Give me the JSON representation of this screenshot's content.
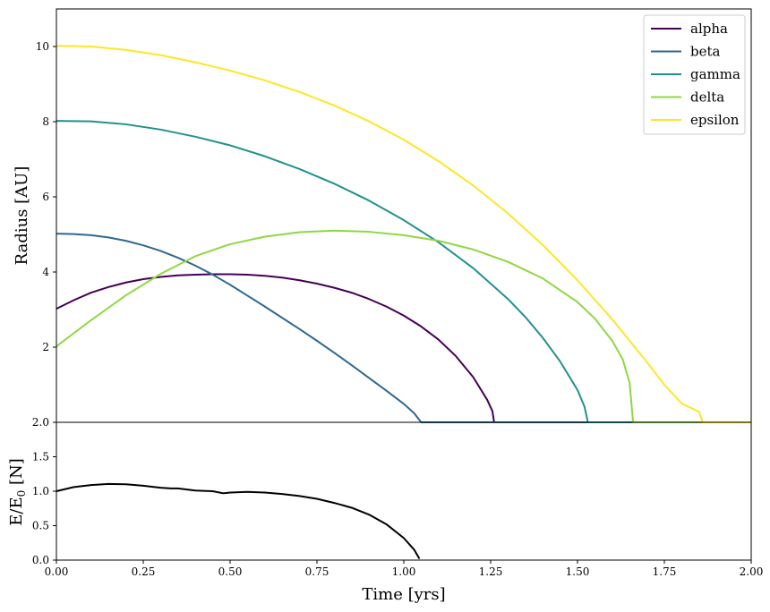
{
  "chart_data": [
    {
      "type": "line",
      "title": "",
      "xlabel": "",
      "ylabel": "Radius [AU]",
      "xlim": [
        0.0,
        2.0
      ],
      "ylim": [
        0.0,
        11.0
      ],
      "yticks": [
        2,
        4,
        6,
        8,
        10
      ],
      "ytick_labels": [
        "2",
        "4",
        "6",
        "8",
        "10"
      ],
      "grid": false,
      "legend": "top-right",
      "series": [
        {
          "name": "alpha",
          "color": "#440154",
          "points": [
            [
              0.0,
              3.02
            ],
            [
              0.05,
              3.25
            ],
            [
              0.1,
              3.45
            ],
            [
              0.15,
              3.6
            ],
            [
              0.2,
              3.72
            ],
            [
              0.25,
              3.81
            ],
            [
              0.3,
              3.87
            ],
            [
              0.35,
              3.91
            ],
            [
              0.4,
              3.93
            ],
            [
              0.45,
              3.94
            ],
            [
              0.5,
              3.94
            ],
            [
              0.55,
              3.93
            ],
            [
              0.6,
              3.9
            ],
            [
              0.65,
              3.85
            ],
            [
              0.7,
              3.78
            ],
            [
              0.75,
              3.69
            ],
            [
              0.8,
              3.58
            ],
            [
              0.85,
              3.45
            ],
            [
              0.9,
              3.28
            ],
            [
              0.95,
              3.08
            ],
            [
              1.0,
              2.84
            ],
            [
              1.05,
              2.55
            ],
            [
              1.1,
              2.2
            ],
            [
              1.15,
              1.76
            ],
            [
              1.2,
              1.2
            ],
            [
              1.24,
              0.6
            ],
            [
              1.255,
              0.3
            ],
            [
              1.26,
              0.0
            ],
            [
              2.0,
              0.0
            ]
          ]
        },
        {
          "name": "beta",
          "color": "#31688e",
          "points": [
            [
              0.0,
              5.02
            ],
            [
              0.05,
              5.01
            ],
            [
              0.1,
              4.98
            ],
            [
              0.15,
              4.92
            ],
            [
              0.2,
              4.83
            ],
            [
              0.25,
              4.71
            ],
            [
              0.3,
              4.56
            ],
            [
              0.35,
              4.38
            ],
            [
              0.4,
              4.17
            ],
            [
              0.45,
              3.93
            ],
            [
              0.5,
              3.66
            ],
            [
              0.55,
              3.37
            ],
            [
              0.6,
              3.08
            ],
            [
              0.65,
              2.78
            ],
            [
              0.7,
              2.48
            ],
            [
              0.75,
              2.17
            ],
            [
              0.8,
              1.85
            ],
            [
              0.85,
              1.52
            ],
            [
              0.9,
              1.18
            ],
            [
              0.95,
              0.84
            ],
            [
              1.0,
              0.49
            ],
            [
              1.03,
              0.24
            ],
            [
              1.05,
              0.0
            ],
            [
              2.0,
              0.0
            ]
          ]
        },
        {
          "name": "gamma",
          "color": "#21918c",
          "points": [
            [
              0.0,
              8.02
            ],
            [
              0.1,
              8.01
            ],
            [
              0.2,
              7.93
            ],
            [
              0.3,
              7.79
            ],
            [
              0.4,
              7.6
            ],
            [
              0.5,
              7.37
            ],
            [
              0.6,
              7.08
            ],
            [
              0.7,
              6.74
            ],
            [
              0.8,
              6.35
            ],
            [
              0.9,
              5.9
            ],
            [
              1.0,
              5.38
            ],
            [
              1.1,
              4.79
            ],
            [
              1.2,
              4.1
            ],
            [
              1.3,
              3.28
            ],
            [
              1.35,
              2.8
            ],
            [
              1.4,
              2.25
            ],
            [
              1.45,
              1.62
            ],
            [
              1.5,
              0.86
            ],
            [
              1.52,
              0.42
            ],
            [
              1.53,
              0.0
            ],
            [
              2.0,
              0.0
            ]
          ]
        },
        {
          "name": "delta",
          "color": "#90d743",
          "points": [
            [
              0.0,
              2.02
            ],
            [
              0.1,
              2.72
            ],
            [
              0.2,
              3.38
            ],
            [
              0.3,
              3.95
            ],
            [
              0.4,
              4.42
            ],
            [
              0.5,
              4.74
            ],
            [
              0.6,
              4.94
            ],
            [
              0.7,
              5.06
            ],
            [
              0.8,
              5.1
            ],
            [
              0.9,
              5.07
            ],
            [
              1.0,
              4.98
            ],
            [
              1.1,
              4.83
            ],
            [
              1.2,
              4.6
            ],
            [
              1.3,
              4.27
            ],
            [
              1.4,
              3.83
            ],
            [
              1.5,
              3.2
            ],
            [
              1.55,
              2.76
            ],
            [
              1.6,
              2.17
            ],
            [
              1.63,
              1.68
            ],
            [
              1.65,
              1.05
            ],
            [
              1.66,
              0.0
            ],
            [
              2.0,
              0.0
            ]
          ]
        },
        {
          "name": "epsilon",
          "color": "#fde725",
          "points": [
            [
              0.0,
              10.02
            ],
            [
              0.1,
              10.0
            ],
            [
              0.2,
              9.91
            ],
            [
              0.3,
              9.77
            ],
            [
              0.4,
              9.58
            ],
            [
              0.5,
              9.36
            ],
            [
              0.6,
              9.1
            ],
            [
              0.7,
              8.79
            ],
            [
              0.8,
              8.43
            ],
            [
              0.9,
              8.01
            ],
            [
              1.0,
              7.52
            ],
            [
              1.1,
              6.95
            ],
            [
              1.2,
              6.3
            ],
            [
              1.3,
              5.56
            ],
            [
              1.4,
              4.72
            ],
            [
              1.5,
              3.78
            ],
            [
              1.6,
              2.74
            ],
            [
              1.7,
              1.6
            ],
            [
              1.75,
              1.0
            ],
            [
              1.8,
              0.5
            ],
            [
              1.85,
              0.28
            ],
            [
              1.86,
              0.0
            ],
            [
              2.0,
              0.0
            ]
          ]
        }
      ]
    },
    {
      "type": "line",
      "title": "",
      "xlabel": "Time [yrs]",
      "ylabel": "E/E_0 [N]",
      "xlim": [
        0.0,
        2.0
      ],
      "ylim": [
        0.0,
        2.0
      ],
      "xticks": [
        0.0,
        0.25,
        0.5,
        0.75,
        1.0,
        1.25,
        1.5,
        1.75,
        2.0
      ],
      "xtick_labels": [
        "0.00",
        "0.25",
        "0.50",
        "0.75",
        "1.00",
        "1.25",
        "1.50",
        "1.75",
        "2.00"
      ],
      "yticks": [
        0.0,
        0.5,
        1.0,
        1.5,
        2.0
      ],
      "ytick_labels": [
        "0.0",
        "0.5",
        "1.0",
        "1.5",
        "2.0"
      ],
      "grid": false,
      "series": [
        {
          "color": "#000000",
          "points": [
            [
              0.0,
              1.0
            ],
            [
              0.05,
              1.06
            ],
            [
              0.1,
              1.09
            ],
            [
              0.15,
              1.105
            ],
            [
              0.2,
              1.1
            ],
            [
              0.25,
              1.08
            ],
            [
              0.3,
              1.05
            ],
            [
              0.33,
              1.04
            ],
            [
              0.35,
              1.04
            ],
            [
              0.4,
              1.01
            ],
            [
              0.45,
              1.0
            ],
            [
              0.48,
              0.97
            ],
            [
              0.5,
              0.98
            ],
            [
              0.55,
              0.99
            ],
            [
              0.6,
              0.98
            ],
            [
              0.65,
              0.96
            ],
            [
              0.7,
              0.93
            ],
            [
              0.75,
              0.89
            ],
            [
              0.8,
              0.83
            ],
            [
              0.85,
              0.76
            ],
            [
              0.9,
              0.66
            ],
            [
              0.95,
              0.52
            ],
            [
              1.0,
              0.32
            ],
            [
              1.03,
              0.15
            ],
            [
              1.045,
              0.02
            ]
          ]
        }
      ]
    }
  ]
}
